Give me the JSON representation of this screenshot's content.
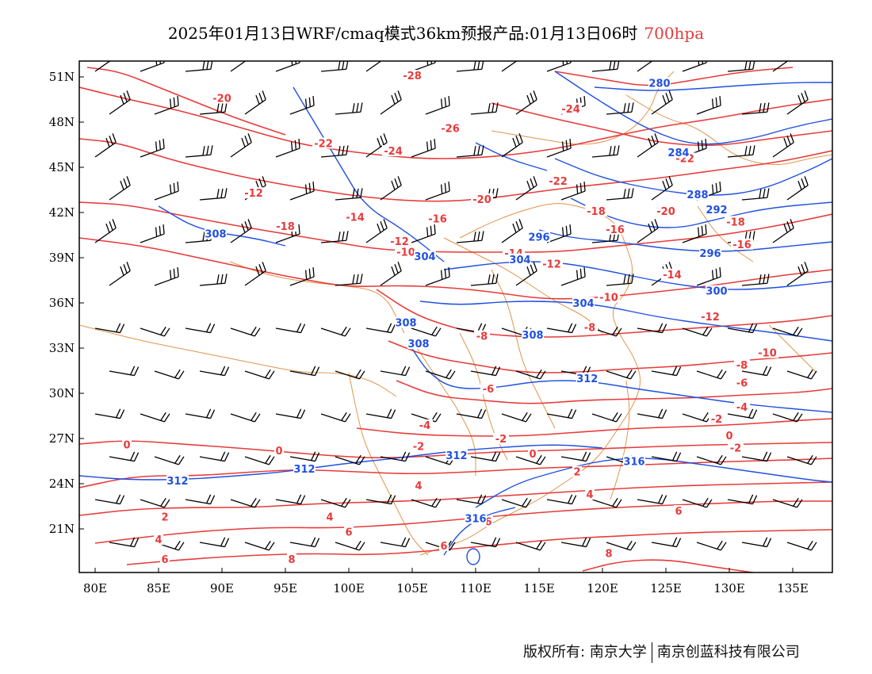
{
  "title": {
    "main": "2025年01月13日WRF/cmaq模式36km预报产品:01月13日06时",
    "level": "700hpa"
  },
  "colors": {
    "temperature": "#e83a3a",
    "height": "#2050e0",
    "border": "#e0954a",
    "wind": "#000000"
  },
  "axes": {
    "lon_labels": [
      "80E",
      "85E",
      "90E",
      "95E",
      "100E",
      "105E",
      "110E",
      "115E",
      "120E",
      "125E",
      "130E",
      "135E"
    ],
    "lat_labels": [
      "51N",
      "48N",
      "45N",
      "42N",
      "39N",
      "36N",
      "33N",
      "30N",
      "27N",
      "24N",
      "21N"
    ]
  },
  "temperature_labels": [
    {
      "text": "-28",
      "lon": 105.0,
      "lat": 51.0
    },
    {
      "text": "-20",
      "lon": 90.0,
      "lat": 49.5
    },
    {
      "text": "-26",
      "lon": 108.0,
      "lat": 47.5
    },
    {
      "text": "-24",
      "lon": 117.5,
      "lat": 48.8
    },
    {
      "text": "-22",
      "lon": 98.0,
      "lat": 46.5
    },
    {
      "text": "-24",
      "lon": 103.5,
      "lat": 46.0
    },
    {
      "text": "-22",
      "lon": 126.5,
      "lat": 45.5
    },
    {
      "text": "-12",
      "lon": 92.5,
      "lat": 43.2
    },
    {
      "text": "-22",
      "lon": 116.5,
      "lat": 44.0
    },
    {
      "text": "-20",
      "lon": 110.5,
      "lat": 42.8
    },
    {
      "text": "-20",
      "lon": 125.0,
      "lat": 42.0
    },
    {
      "text": "-18",
      "lon": 95.0,
      "lat": 41.0
    },
    {
      "text": "-14",
      "lon": 100.5,
      "lat": 41.6
    },
    {
      "text": "-16",
      "lon": 107.0,
      "lat": 41.5
    },
    {
      "text": "-18",
      "lon": 119.5,
      "lat": 42.0
    },
    {
      "text": "-18",
      "lon": 130.5,
      "lat": 41.3
    },
    {
      "text": "-16",
      "lon": 121.0,
      "lat": 40.8
    },
    {
      "text": "-12",
      "lon": 104.0,
      "lat": 40.0
    },
    {
      "text": "-10",
      "lon": 104.5,
      "lat": 39.3
    },
    {
      "text": "-14",
      "lon": 113.0,
      "lat": 39.2
    },
    {
      "text": "-12",
      "lon": 116.0,
      "lat": 38.5
    },
    {
      "text": "-16",
      "lon": 131.0,
      "lat": 39.8
    },
    {
      "text": "-14",
      "lon": 125.5,
      "lat": 37.8
    },
    {
      "text": "-10",
      "lon": 120.5,
      "lat": 36.3
    },
    {
      "text": "-12",
      "lon": 128.5,
      "lat": 35.0
    },
    {
      "text": "-8",
      "lon": 119.0,
      "lat": 34.3
    },
    {
      "text": "-8",
      "lon": 110.5,
      "lat": 33.7
    },
    {
      "text": "-10",
      "lon": 133.0,
      "lat": 32.6
    },
    {
      "text": "-8",
      "lon": 131.0,
      "lat": 31.8
    },
    {
      "text": "-6",
      "lon": 131.0,
      "lat": 30.6
    },
    {
      "text": "-6",
      "lon": 111.0,
      "lat": 30.2
    },
    {
      "text": "-4",
      "lon": 131.0,
      "lat": 29.0
    },
    {
      "text": "-2",
      "lon": 129.0,
      "lat": 28.2
    },
    {
      "text": "-4",
      "lon": 106.0,
      "lat": 27.8
    },
    {
      "text": "0",
      "lon": 130.0,
      "lat": 27.1
    },
    {
      "text": "-2",
      "lon": 112.0,
      "lat": 26.9
    },
    {
      "text": "-2",
      "lon": 105.5,
      "lat": 26.4
    },
    {
      "text": "0",
      "lon": 82.5,
      "lat": 26.5
    },
    {
      "text": "0",
      "lon": 94.5,
      "lat": 26.1
    },
    {
      "text": "0",
      "lon": 114.5,
      "lat": 25.9
    },
    {
      "text": "-2",
      "lon": 130.5,
      "lat": 26.3
    },
    {
      "text": "2",
      "lon": 118.0,
      "lat": 24.7
    },
    {
      "text": "4",
      "lon": 105.5,
      "lat": 23.8
    },
    {
      "text": "4",
      "lon": 119.0,
      "lat": 23.2
    },
    {
      "text": "6",
      "lon": 126.0,
      "lat": 22.1
    },
    {
      "text": "2",
      "lon": 85.5,
      "lat": 21.7
    },
    {
      "text": "4",
      "lon": 98.5,
      "lat": 21.7
    },
    {
      "text": "6",
      "lon": 111.0,
      "lat": 21.4
    },
    {
      "text": "6",
      "lon": 100.0,
      "lat": 20.7
    },
    {
      "text": "4",
      "lon": 85.0,
      "lat": 20.2
    },
    {
      "text": "6",
      "lon": 107.5,
      "lat": 19.8
    },
    {
      "text": "6",
      "lon": 85.5,
      "lat": 18.9
    },
    {
      "text": "8",
      "lon": 95.5,
      "lat": 18.9
    },
    {
      "text": "8",
      "lon": 120.5,
      "lat": 19.3
    }
  ],
  "height_labels": [
    {
      "text": "280",
      "lon": 124.5,
      "lat": 50.5
    },
    {
      "text": "284",
      "lon": 126.0,
      "lat": 45.9
    },
    {
      "text": "288",
      "lon": 127.5,
      "lat": 43.1
    },
    {
      "text": "292",
      "lon": 129.0,
      "lat": 42.1
    },
    {
      "text": "296",
      "lon": 115.0,
      "lat": 40.3
    },
    {
      "text": "296",
      "lon": 128.5,
      "lat": 39.2
    },
    {
      "text": "304",
      "lon": 106.0,
      "lat": 39.0
    },
    {
      "text": "304",
      "lon": 113.5,
      "lat": 38.8
    },
    {
      "text": "308",
      "lon": 89.5,
      "lat": 40.5
    },
    {
      "text": "300",
      "lon": 129.0,
      "lat": 36.7
    },
    {
      "text": "304",
      "lon": 118.5,
      "lat": 35.9
    },
    {
      "text": "308",
      "lon": 104.5,
      "lat": 34.6
    },
    {
      "text": "308",
      "lon": 105.5,
      "lat": 33.2
    },
    {
      "text": "308",
      "lon": 114.5,
      "lat": 33.8
    },
    {
      "text": "312",
      "lon": 118.8,
      "lat": 30.9
    },
    {
      "text": "312",
      "lon": 108.5,
      "lat": 25.8
    },
    {
      "text": "312",
      "lon": 96.5,
      "lat": 24.9
    },
    {
      "text": "312",
      "lon": 86.5,
      "lat": 24.1
    },
    {
      "text": "316",
      "lon": 122.5,
      "lat": 25.4
    },
    {
      "text": "316",
      "lon": 110.0,
      "lat": 21.6
    }
  ],
  "credit": {
    "left": "版权所有: 南京大学",
    "right": "南京创蓝科技有限公司"
  }
}
